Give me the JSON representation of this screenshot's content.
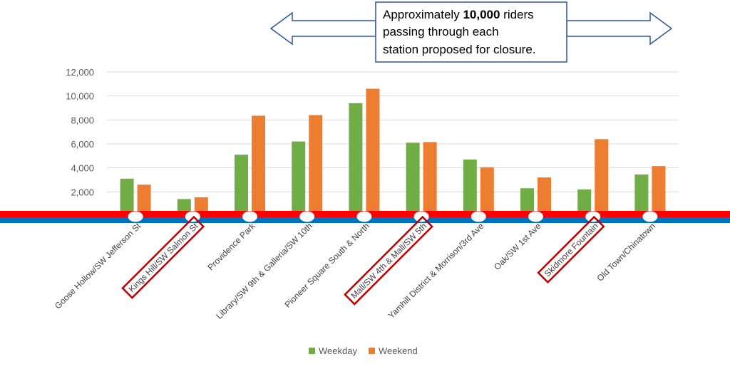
{
  "chart_data": {
    "type": "bar",
    "categories": [
      "Goose Hollow/SW Jefferson St",
      "Kings Hill/SW Salmon St",
      "Providence Park",
      "Library/SW 9th & Galleria/SW 10th",
      "Pioneer Square South & North",
      "Mall/SW 4th & Mall/SW 5th",
      "Yamhill District & Morrison/3rd Ave",
      "Oak/SW 1st Ave",
      "Skidmore Fountain",
      "Old Town/Chinatown"
    ],
    "series": [
      {
        "name": "Weekday",
        "color": "#70AD47",
        "values": [
          3100,
          1400,
          5100,
          6200,
          9400,
          6100,
          4700,
          2300,
          2200,
          3450
        ]
      },
      {
        "name": "Weekend",
        "color": "#ED7D31",
        "values": [
          2600,
          1550,
          8350,
          8400,
          10600,
          6150,
          4050,
          3200,
          6400,
          4150
        ]
      }
    ],
    "ylim": [
      0,
      12000
    ],
    "yticks": [
      "2,000",
      "4,000",
      "6,000",
      "8,000",
      "10,000",
      "12,000"
    ],
    "ytick_values": [
      2000,
      4000,
      6000,
      8000,
      10000,
      12000
    ],
    "grid": true,
    "legend_position": "bottom",
    "highlighted_categories": [
      1,
      5,
      8
    ],
    "highlight_color": "#C00000",
    "track_colors": {
      "top": "#FF0000",
      "bottom": "#0070C0"
    }
  },
  "annotation": {
    "prefix": "Approximately ",
    "bold": "10,000",
    "suffix": " riders",
    "line2": "passing through each",
    "line3": "station proposed for closure.",
    "border_color": "#2F5597"
  }
}
